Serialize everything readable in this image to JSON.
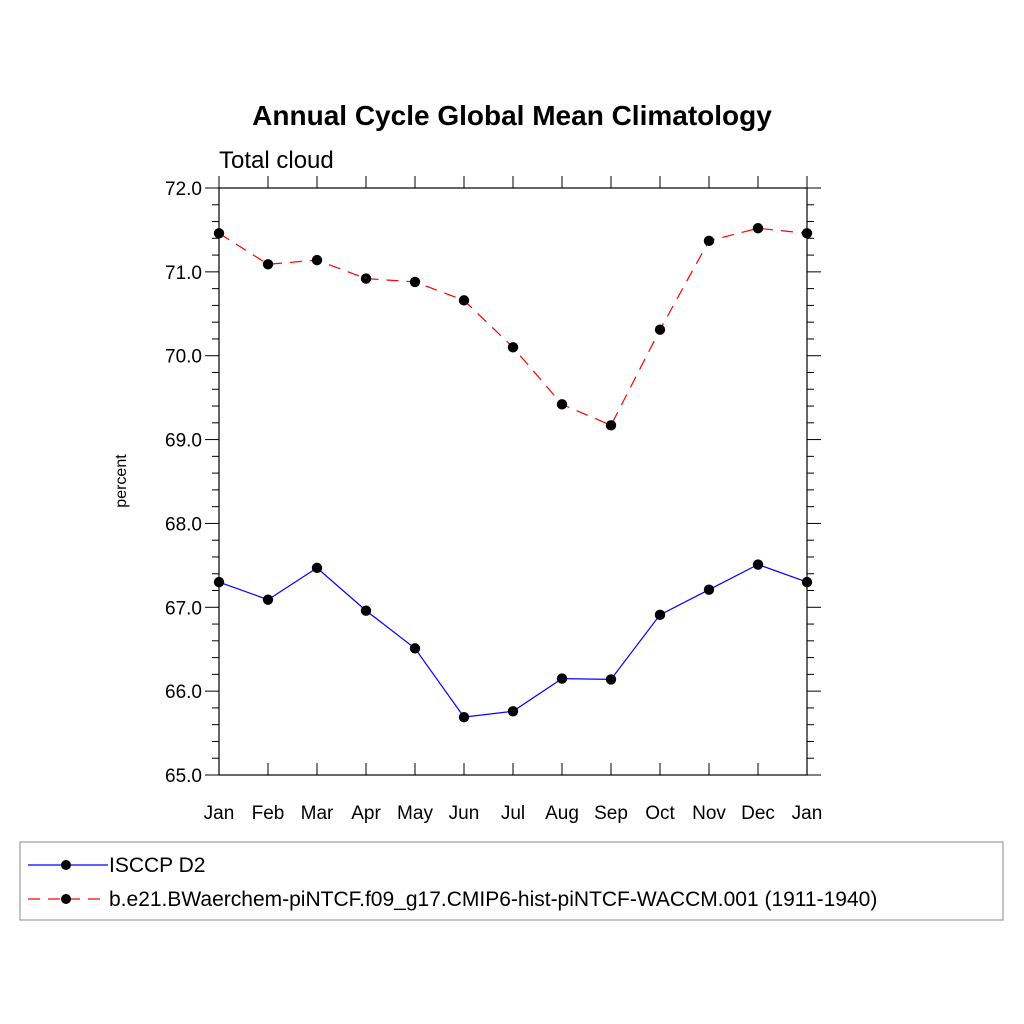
{
  "chart_data": {
    "type": "line",
    "title": "Annual Cycle Global Mean Climatology",
    "subtitle": "Total cloud",
    "xlabel": "",
    "ylabel": "percent",
    "categories": [
      "Jan",
      "Feb",
      "Mar",
      "Apr",
      "May",
      "Jun",
      "Jul",
      "Aug",
      "Sep",
      "Oct",
      "Nov",
      "Dec",
      "Jan"
    ],
    "ylim": [
      65.0,
      72.0
    ],
    "yticks": [
      "65.0",
      "66.0",
      "67.0",
      "68.0",
      "69.0",
      "70.0",
      "71.0",
      "72.0"
    ],
    "grid": false,
    "legend_position": "bottom",
    "series": [
      {
        "name": "ISCCP D2",
        "color": "#0000ff",
        "line_style": "solid",
        "marker": "filled-circle",
        "values": [
          67.3,
          67.09,
          67.47,
          66.96,
          66.51,
          65.69,
          65.76,
          66.15,
          66.14,
          66.91,
          67.21,
          67.51,
          67.3
        ]
      },
      {
        "name": "b.e21.BWaerchem-piNTCF.f09_g17.CMIP6-hist-piNTCF-WACCM.001 (1911-1940)",
        "color": "#ff0000",
        "line_style": "dashed",
        "marker": "filled-circle",
        "values": [
          71.46,
          71.09,
          71.14,
          70.92,
          70.88,
          70.66,
          70.1,
          69.42,
          69.17,
          70.31,
          71.37,
          71.52,
          71.46
        ]
      }
    ]
  }
}
